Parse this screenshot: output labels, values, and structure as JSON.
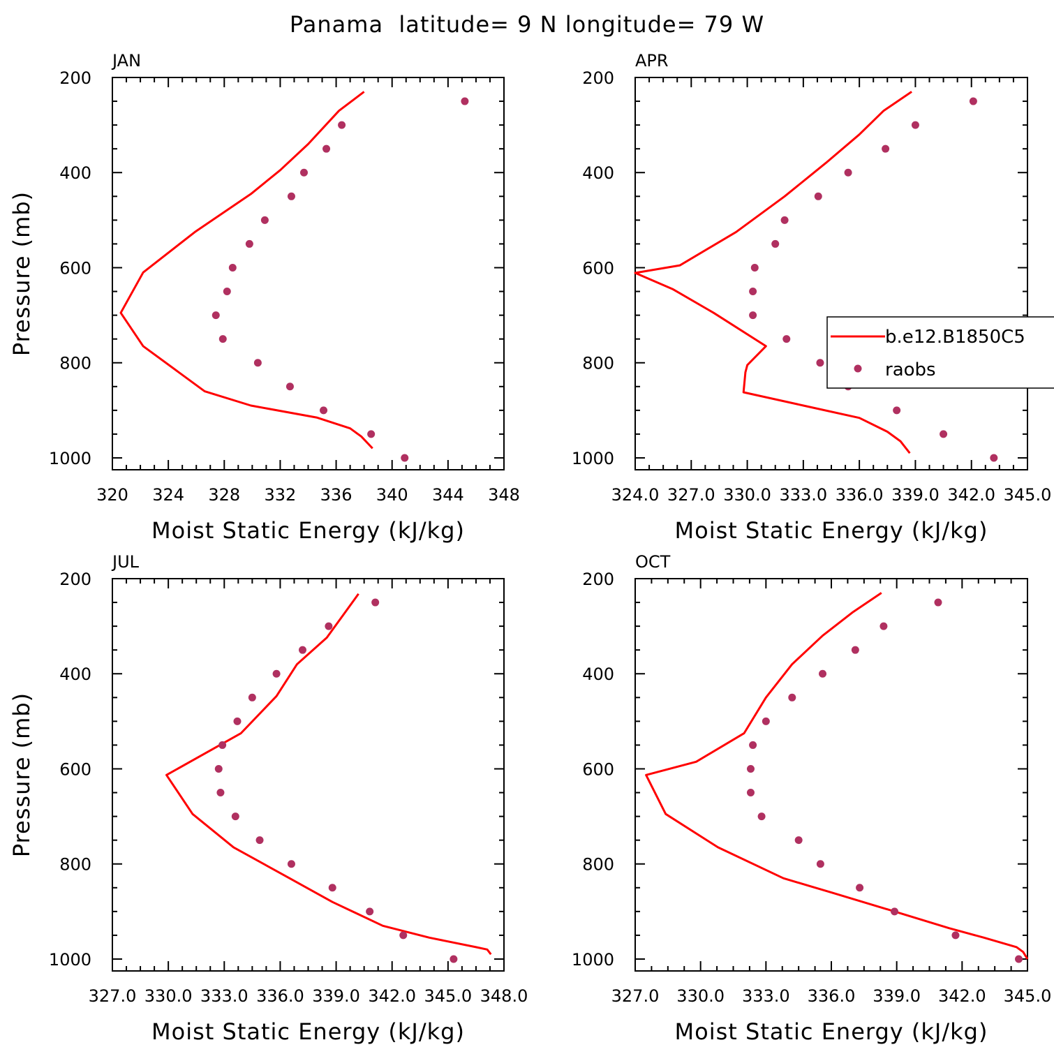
{
  "figure": {
    "title": "Panama  latitude= 9 N longitude= 79 W"
  },
  "legend": {
    "entries": [
      {
        "name": "b.e12.B1850C5",
        "color": "#ff0000",
        "kind": "line"
      },
      {
        "name": "raobs",
        "color": "#b03060",
        "kind": "dot"
      }
    ]
  },
  "chart_data": [
    {
      "type": "line",
      "title": "JAN",
      "xlabel": "Moist Static Energy (kJ/kg)",
      "ylabel": "Pressure (mb)",
      "xlim": [
        320,
        348
      ],
      "ylim": [
        1000,
        200
      ],
      "y_inverted": true,
      "xticks": [
        320,
        324,
        328,
        332,
        336,
        340,
        344,
        348
      ],
      "xtick_labels": [
        "320",
        "324",
        "328",
        "332",
        "336",
        "340",
        "344",
        "348"
      ],
      "yticks": [
        200,
        400,
        600,
        800,
        1000
      ],
      "ytick_labels": [
        "200",
        "400",
        "600",
        "800",
        "1000"
      ],
      "series": [
        {
          "name": "b.e12.B1850C5",
          "color": "#ff0000",
          "kind": "line",
          "points": [
            [
              338.0,
              230
            ],
            [
              336.2,
              270
            ],
            [
              334.0,
              340
            ],
            [
              332.0,
              395
            ],
            [
              329.9,
              445
            ],
            [
              325.9,
              525
            ],
            [
              322.2,
              610
            ],
            [
              320.6,
              695
            ],
            [
              322.2,
              765
            ],
            [
              326.6,
              860
            ],
            [
              329.9,
              890
            ],
            [
              334.6,
              915
            ],
            [
              337.0,
              938
            ],
            [
              337.8,
              955
            ],
            [
              338.6,
              980
            ]
          ]
        },
        {
          "name": "raobs",
          "color": "#b03060",
          "kind": "dot",
          "points": [
            [
              345.2,
              250
            ],
            [
              336.4,
              300
            ],
            [
              335.3,
              350
            ],
            [
              333.7,
              400
            ],
            [
              332.8,
              450
            ],
            [
              330.9,
              500
            ],
            [
              329.8,
              550
            ],
            [
              328.6,
              600
            ],
            [
              328.2,
              650
            ],
            [
              327.4,
              700
            ],
            [
              327.9,
              750
            ],
            [
              330.4,
              800
            ],
            [
              332.7,
              850
            ],
            [
              335.1,
              900
            ],
            [
              338.5,
              950
            ],
            [
              340.9,
              1000
            ]
          ]
        }
      ]
    },
    {
      "type": "line",
      "title": "APR",
      "xlabel": "Moist Static Energy (kJ/kg)",
      "ylabel": "",
      "xlim": [
        324.0,
        345.0
      ],
      "ylim": [
        1000,
        200
      ],
      "y_inverted": true,
      "xticks": [
        324,
        327,
        330,
        333,
        336,
        339,
        342,
        345
      ],
      "xtick_labels": [
        "324.0",
        "327.0",
        "330.0",
        "333.0",
        "336.0",
        "339.0",
        "342.0",
        "345.0"
      ],
      "yticks": [
        200,
        400,
        600,
        800,
        1000
      ],
      "ytick_labels": [
        "200",
        "400",
        "600",
        "800",
        "1000"
      ],
      "legend_position": "right",
      "series": [
        {
          "name": "b.e12.B1850C5",
          "color": "#ff0000",
          "kind": "line",
          "points": [
            [
              338.8,
              230
            ],
            [
              337.3,
              270
            ],
            [
              336.0,
              320
            ],
            [
              334.2,
              380
            ],
            [
              332.0,
              450
            ],
            [
              329.4,
              525
            ],
            [
              326.4,
              595
            ],
            [
              324.0,
              611
            ],
            [
              326.0,
              645
            ],
            [
              328.2,
              695
            ],
            [
              331.0,
              765
            ],
            [
              330.0,
              805
            ],
            [
              329.9,
              820
            ],
            [
              329.8,
              862
            ],
            [
              333.0,
              890
            ],
            [
              336.0,
              916
            ],
            [
              337.5,
              945
            ],
            [
              338.2,
              965
            ],
            [
              338.7,
              990
            ]
          ]
        },
        {
          "name": "raobs",
          "color": "#b03060",
          "kind": "dot",
          "points": [
            [
              342.1,
              250
            ],
            [
              339.0,
              300
            ],
            [
              337.4,
              350
            ],
            [
              335.4,
              400
            ],
            [
              333.8,
              450
            ],
            [
              332.0,
              500
            ],
            [
              331.5,
              550
            ],
            [
              330.4,
              600
            ],
            [
              330.3,
              650
            ],
            [
              330.3,
              700
            ],
            [
              332.1,
              750
            ],
            [
              333.9,
              800
            ],
            [
              335.4,
              850
            ],
            [
              338.0,
              900
            ],
            [
              340.5,
              950
            ],
            [
              343.2,
              1000
            ]
          ]
        }
      ]
    },
    {
      "type": "line",
      "title": "JUL",
      "xlabel": "Moist Static Energy (kJ/kg)",
      "ylabel": "Pressure (mb)",
      "xlim": [
        327.0,
        348.0
      ],
      "ylim": [
        1000,
        200
      ],
      "y_inverted": true,
      "xticks": [
        327,
        330,
        333,
        336,
        339,
        342,
        345,
        348
      ],
      "xtick_labels": [
        "327.0",
        "330.0",
        "333.0",
        "336.0",
        "339.0",
        "342.0",
        "345.0",
        "348.0"
      ],
      "yticks": [
        200,
        400,
        600,
        800,
        1000
      ],
      "ytick_labels": [
        "200",
        "400",
        "600",
        "800",
        "1000"
      ],
      "series": [
        {
          "name": "b.e12.B1850C5",
          "color": "#ff0000",
          "kind": "line",
          "points": [
            [
              340.2,
              232
            ],
            [
              338.5,
              324
            ],
            [
              336.9,
              380
            ],
            [
              335.8,
              447
            ],
            [
              333.9,
              525
            ],
            [
              329.9,
              613
            ],
            [
              331.3,
              695
            ],
            [
              333.5,
              765
            ],
            [
              336.5,
              830
            ],
            [
              338.8,
              880
            ],
            [
              341.5,
              930
            ],
            [
              344.0,
              955
            ],
            [
              346.5,
              975
            ],
            [
              347.1,
              980
            ],
            [
              347.3,
              990
            ]
          ]
        },
        {
          "name": "raobs",
          "color": "#b03060",
          "kind": "dot",
          "points": [
            [
              341.1,
              250
            ],
            [
              338.6,
              300
            ],
            [
              337.2,
              350
            ],
            [
              335.8,
              400
            ],
            [
              334.5,
              450
            ],
            [
              333.7,
              500
            ],
            [
              332.9,
              550
            ],
            [
              332.7,
              600
            ],
            [
              332.8,
              650
            ],
            [
              333.6,
              700
            ],
            [
              334.9,
              750
            ],
            [
              336.6,
              800
            ],
            [
              338.8,
              850
            ],
            [
              340.8,
              900
            ],
            [
              342.6,
              950
            ],
            [
              345.3,
              1000
            ]
          ]
        }
      ]
    },
    {
      "type": "line",
      "title": "OCT",
      "xlabel": "Moist Static Energy (kJ/kg)",
      "ylabel": "",
      "xlim": [
        327.0,
        345.0
      ],
      "ylim": [
        1000,
        200
      ],
      "y_inverted": true,
      "xticks": [
        327,
        330,
        333,
        336,
        339,
        342,
        345
      ],
      "xtick_labels": [
        "327.0",
        "330.0",
        "333.0",
        "336.0",
        "339.0",
        "342.0",
        "345.0"
      ],
      "yticks": [
        200,
        400,
        600,
        800,
        1000
      ],
      "ytick_labels": [
        "200",
        "400",
        "600",
        "800",
        "1000"
      ],
      "series": [
        {
          "name": "b.e12.B1850C5",
          "color": "#ff0000",
          "kind": "line",
          "points": [
            [
              338.3,
              230
            ],
            [
              337.0,
              270
            ],
            [
              335.6,
              320
            ],
            [
              334.2,
              380
            ],
            [
              333.0,
              450
            ],
            [
              332.0,
              525
            ],
            [
              329.8,
              585
            ],
            [
              327.5,
              613
            ],
            [
              328.4,
              695
            ],
            [
              330.8,
              765
            ],
            [
              333.8,
              830
            ],
            [
              336.0,
              860
            ],
            [
              338.9,
              900
            ],
            [
              341.4,
              935
            ],
            [
              343.0,
              955
            ],
            [
              344.5,
              975
            ],
            [
              344.8,
              985
            ],
            [
              345.0,
              1000
            ]
          ]
        },
        {
          "name": "raobs",
          "color": "#b03060",
          "kind": "dot",
          "points": [
            [
              340.9,
              250
            ],
            [
              338.4,
              300
            ],
            [
              337.1,
              350
            ],
            [
              335.6,
              400
            ],
            [
              334.2,
              450
            ],
            [
              333.0,
              500
            ],
            [
              332.4,
              550
            ],
            [
              332.3,
              600
            ],
            [
              332.3,
              650
            ],
            [
              332.8,
              700
            ],
            [
              334.5,
              750
            ],
            [
              335.5,
              800
            ],
            [
              337.3,
              850
            ],
            [
              338.9,
              900
            ],
            [
              341.7,
              950
            ],
            [
              344.6,
              1000
            ]
          ]
        }
      ]
    }
  ]
}
